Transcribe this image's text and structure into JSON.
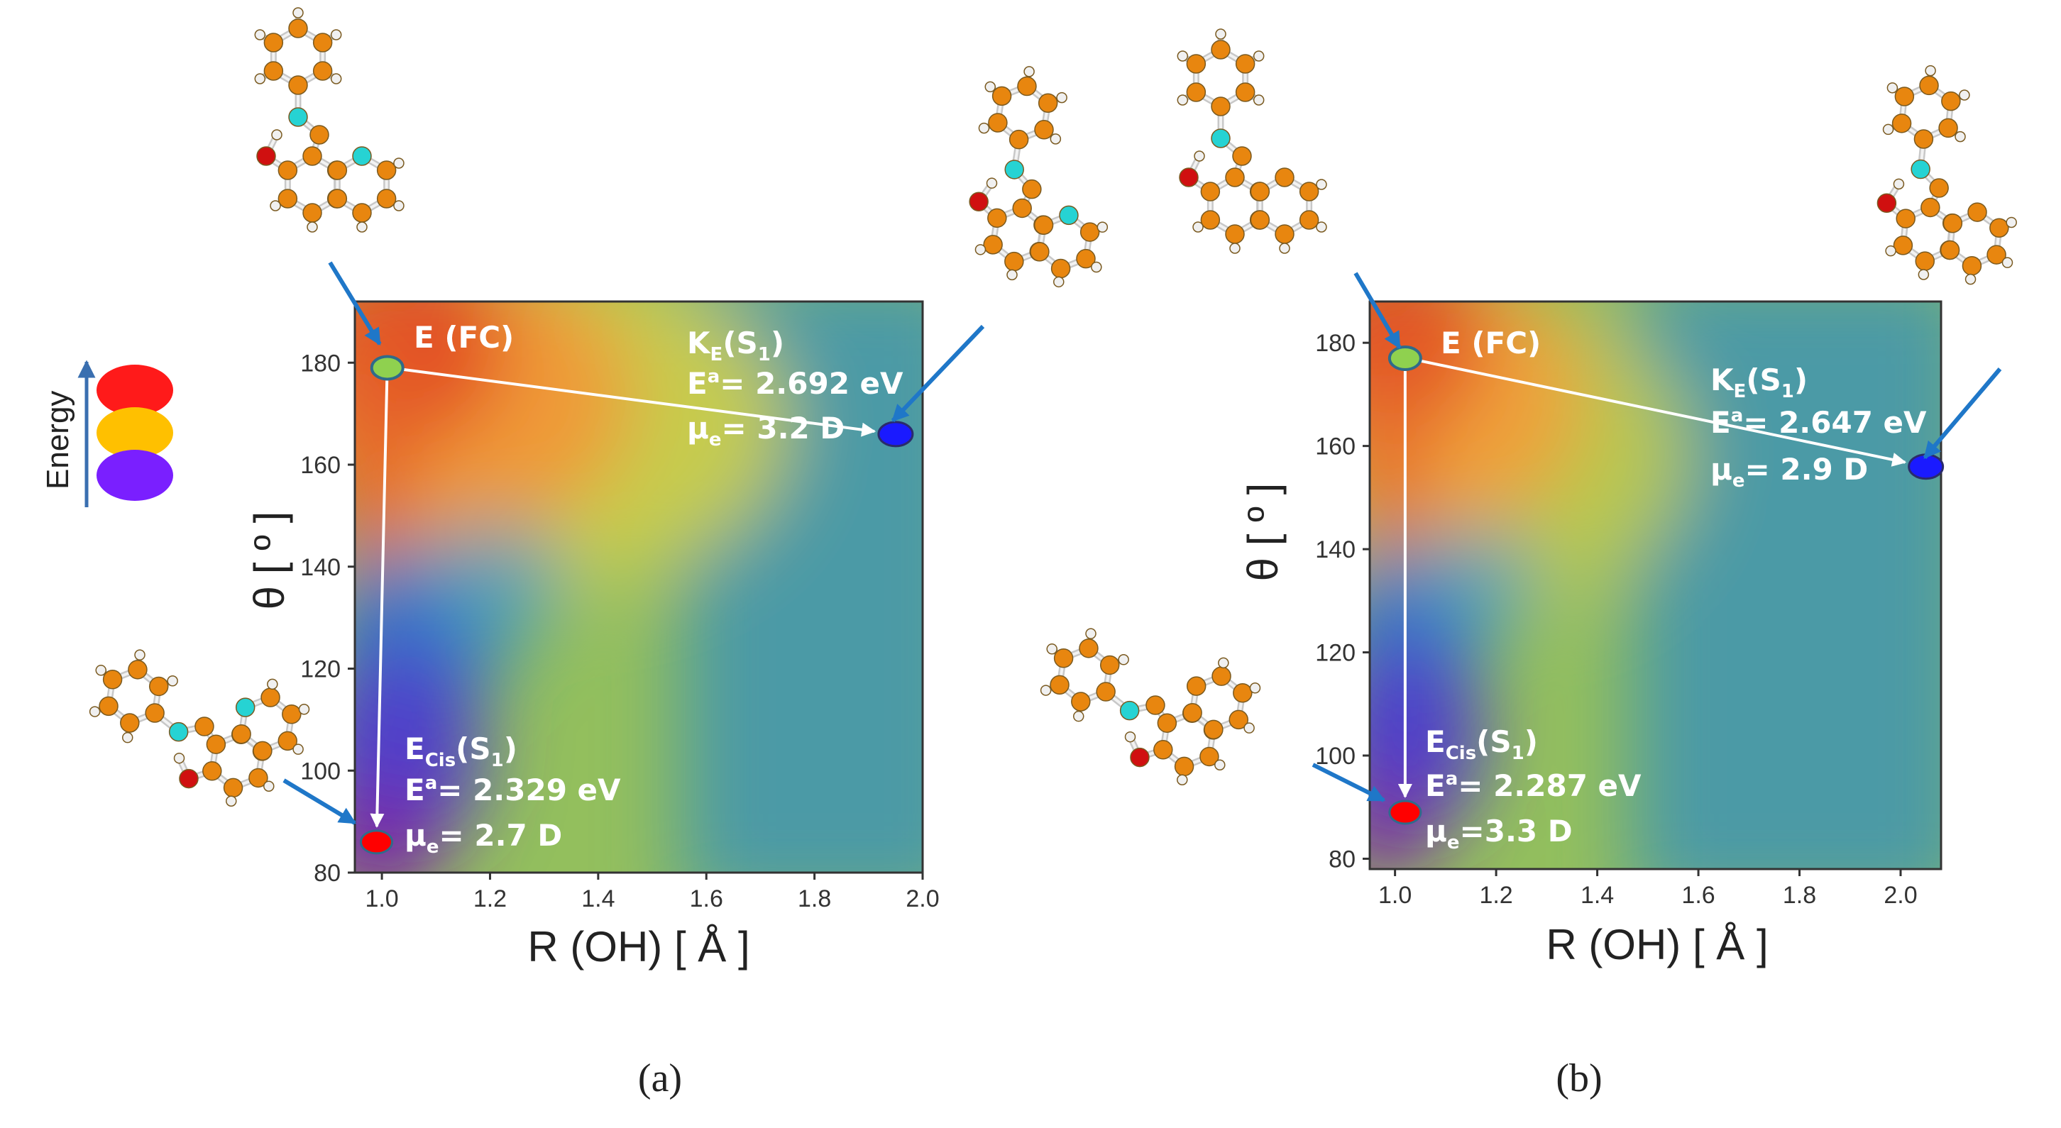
{
  "legend": {
    "label": "Energy",
    "colors": [
      "#ff1a1a",
      "#ffc000",
      "#7a1fff"
    ]
  },
  "chart_data": [
    {
      "type": "heatmap",
      "caption": "(a)",
      "xlabel": "R (OH) [ Å ]",
      "ylabel": "θ [ º ]",
      "xlim": [
        0.95,
        2.0
      ],
      "ylim": [
        80,
        192
      ],
      "xticks": [
        "1.0",
        "1.2",
        "1.4",
        "1.6",
        "1.8",
        "2.0"
      ],
      "yticks": [
        "80",
        "100",
        "120",
        "140",
        "160",
        "180"
      ],
      "points": [
        {
          "name": "E (FC)",
          "x": 1.01,
          "y": 179,
          "color": "#8fd14f"
        },
        {
          "name": "K_E(S1)",
          "x": 1.95,
          "y": 166,
          "color": "#1a1aff"
        },
        {
          "name": "E_Cis(S1)",
          "x": 0.99,
          "y": 86,
          "color": "#ff0000"
        }
      ],
      "labels": {
        "fc": "E (FC)",
        "keto_head": "K",
        "keto_sub": "E",
        "keto_state_pre": "(S",
        "keto_state_num": "1",
        "keto_state_post": ")",
        "keto_energy": "E",
        "keto_energy_sup": "a",
        "keto_energy_val": "= 2.692 eV",
        "keto_dipole": "μ",
        "keto_dipole_sub": "e",
        "keto_dipole_val": "= 3.2 D",
        "cis_head": "E",
        "cis_sub": "Cis",
        "cis_state_pre": "(S",
        "cis_state_num": "1",
        "cis_state_post": ")",
        "cis_energy": "E",
        "cis_energy_sup": "a",
        "cis_energy_val": "= 2.329 eV",
        "cis_dipole": "μ",
        "cis_dipole_sub": "e",
        "cis_dipole_val": "= 2.7 D"
      }
    },
    {
      "type": "heatmap",
      "caption": "(b)",
      "xlabel": "R (OH) [ Å ]",
      "ylabel": "θ [ º ]",
      "xlim": [
        0.95,
        2.08
      ],
      "ylim": [
        78,
        188
      ],
      "xticks": [
        "1.0",
        "1.2",
        "1.4",
        "1.6",
        "1.8",
        "2.0"
      ],
      "yticks": [
        "80",
        "100",
        "120",
        "140",
        "160",
        "180"
      ],
      "points": [
        {
          "name": "E (FC)",
          "x": 1.02,
          "y": 177,
          "color": "#8fd14f"
        },
        {
          "name": "K_E(S1)",
          "x": 2.05,
          "y": 156,
          "color": "#1a1aff"
        },
        {
          "name": "E_Cis(S1)",
          "x": 1.02,
          "y": 89,
          "color": "#ff0000"
        }
      ],
      "labels": {
        "fc": "E (FC)",
        "keto_head": "K",
        "keto_sub": "E",
        "keto_state_pre": "(S",
        "keto_state_num": "1",
        "keto_state_post": ")",
        "keto_energy": "E",
        "keto_energy_sup": "a",
        "keto_energy_val": "= 2.647 eV",
        "keto_dipole": "μ",
        "keto_dipole_sub": "e",
        "keto_dipole_val": "= 2.9 D",
        "cis_head": "E",
        "cis_sub": "Cis",
        "cis_state_pre": "(S",
        "cis_state_num": "1",
        "cis_state_post": ")",
        "cis_energy": "E",
        "cis_energy_sup": "a",
        "cis_energy_val": "= 2.287 eV",
        "cis_dipole": "μ",
        "cis_dipole_sub": "e",
        "cis_dipole_val": "=3.3 D"
      }
    }
  ]
}
